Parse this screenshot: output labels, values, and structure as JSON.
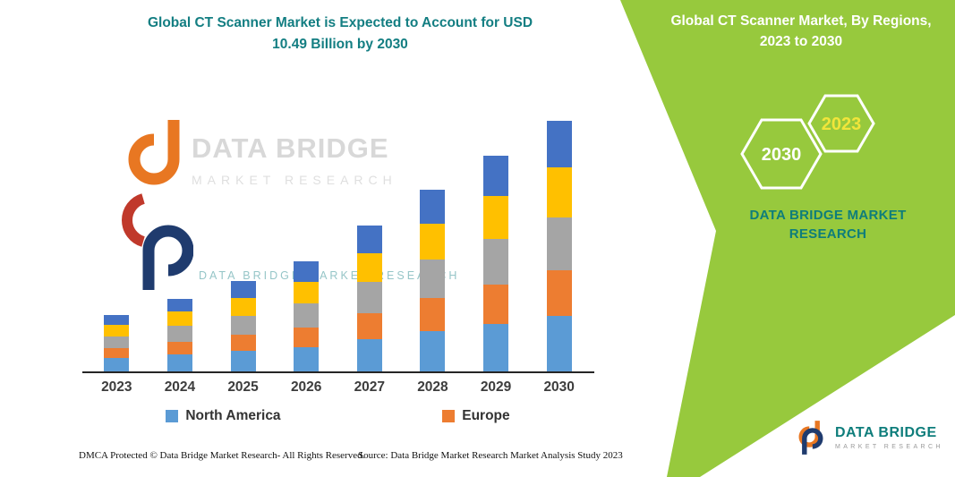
{
  "title": "Global CT Scanner Market is Expected to Account for USD 10.49 Billion by 2030",
  "chart_data": {
    "type": "bar",
    "stacked": true,
    "title": "Global CT Scanner Market is Expected to Account for USD 10.49 Billion by 2030",
    "unit": "USD Billion",
    "categories": [
      "2023",
      "2024",
      "2025",
      "2026",
      "2027",
      "2028",
      "2029",
      "2030"
    ],
    "series": [
      {
        "name": "North America",
        "color": "#5B9BD5",
        "values": [
          0.55,
          0.7,
          0.85,
          1.02,
          1.35,
          1.7,
          2.0,
          2.32
        ]
      },
      {
        "name": "Europe",
        "color": "#ED7D31",
        "values": [
          0.42,
          0.55,
          0.68,
          0.83,
          1.1,
          1.38,
          1.65,
          1.92
        ]
      },
      {
        "name": "",
        "color": "#A5A5A5",
        "values": [
          0.5,
          0.65,
          0.8,
          0.98,
          1.3,
          1.6,
          1.9,
          2.2
        ]
      },
      {
        "name": "",
        "color": "#FFC000",
        "values": [
          0.48,
          0.6,
          0.75,
          0.92,
          1.2,
          1.52,
          1.8,
          2.1
        ]
      },
      {
        "name": "",
        "color": "#4472C4",
        "values": [
          0.4,
          0.55,
          0.72,
          0.85,
          1.15,
          1.4,
          1.7,
          1.95
        ]
      }
    ],
    "totals": [
      2.35,
      3.05,
      3.8,
      4.6,
      6.1,
      7.6,
      9.05,
      10.49
    ],
    "legend": [
      {
        "label": "North America",
        "color": "#5B9BD5"
      },
      {
        "label": "Europe",
        "color": "#ED7D31"
      }
    ],
    "ylim": [
      0,
      10.49
    ],
    "grid": false,
    "legend_position": "bottom"
  },
  "right_panel": {
    "title": "Global CT Scanner Market, By Regions, 2023 to 2030",
    "hexagon_back": "2030",
    "hexagon_front": "2023",
    "brand": "DATA BRIDGE MARKET RESEARCH",
    "panel_color": "#97C93D",
    "teal_color": "#0E7D7B",
    "hexagon_front_text_color": "#F1E53A"
  },
  "watermark": {
    "brand": "DATA BRIDGE",
    "sub": "MARKET RESEARCH",
    "tagline": "DATA BRIDGE MARKET RESEARCH"
  },
  "logo": {
    "brand": "DATA BRIDGE",
    "sub": "MARKET RESEARCH"
  },
  "footer": {
    "dmca": "DMCA Protected © Data Bridge Market Research-  All Rights Reserved.",
    "source": "Source: Data Bridge Market Research  Market Analysis Study 2023"
  }
}
